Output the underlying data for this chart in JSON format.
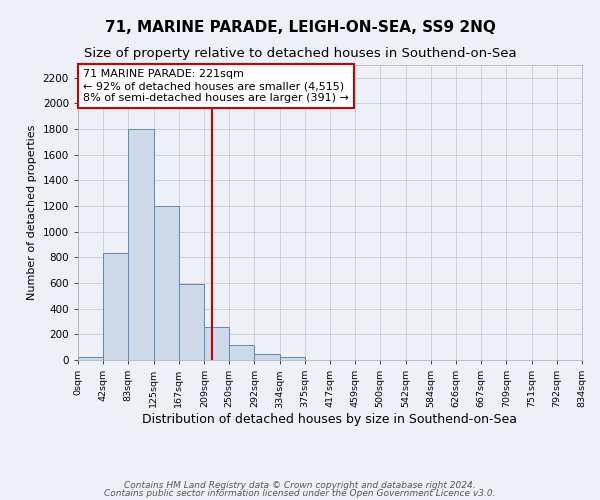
{
  "title": "71, MARINE PARADE, LEIGH-ON-SEA, SS9 2NQ",
  "subtitle": "Size of property relative to detached houses in Southend-on-Sea",
  "xlabel": "Distribution of detached houses by size in Southend-on-Sea",
  "ylabel": "Number of detached properties",
  "bin_edges": [
    0,
    42,
    83,
    125,
    167,
    209,
    250,
    292,
    334,
    375,
    417,
    459,
    500,
    542,
    584,
    626,
    667,
    709,
    751,
    792,
    834
  ],
  "bin_counts": [
    25,
    835,
    1800,
    1200,
    590,
    255,
    120,
    45,
    25,
    0,
    0,
    0,
    0,
    0,
    0,
    0,
    0,
    0,
    0,
    0
  ],
  "bar_facecolor": "#cdd9e8",
  "bar_edgecolor": "#5b8ab5",
  "vline_x": 221,
  "vline_color": "#cc0000",
  "annotation_line1": "71 MARINE PARADE: 221sqm",
  "annotation_line2": "← 92% of detached houses are smaller (4,515)",
  "annotation_line3": "8% of semi-detached houses are larger (391) →",
  "ylim": [
    0,
    2300
  ],
  "yticks": [
    0,
    200,
    400,
    600,
    800,
    1000,
    1200,
    1400,
    1600,
    1800,
    2000,
    2200
  ],
  "tick_labels": [
    "0sqm",
    "42sqm",
    "83sqm",
    "125sqm",
    "167sqm",
    "209sqm",
    "250sqm",
    "292sqm",
    "334sqm",
    "375sqm",
    "417sqm",
    "459sqm",
    "500sqm",
    "542sqm",
    "584sqm",
    "626sqm",
    "667sqm",
    "709sqm",
    "751sqm",
    "792sqm",
    "834sqm"
  ],
  "footer_line1": "Contains HM Land Registry data © Crown copyright and database right 2024.",
  "footer_line2": "Contains public sector information licensed under the Open Government Licence v3.0.",
  "grid_color": "#cccccc",
  "background_color": "#edf1f7",
  "title_fontsize": 11,
  "subtitle_fontsize": 9.5,
  "annotation_fontsize": 8,
  "footer_fontsize": 6.5,
  "xlabel_fontsize": 9,
  "ylabel_fontsize": 8
}
